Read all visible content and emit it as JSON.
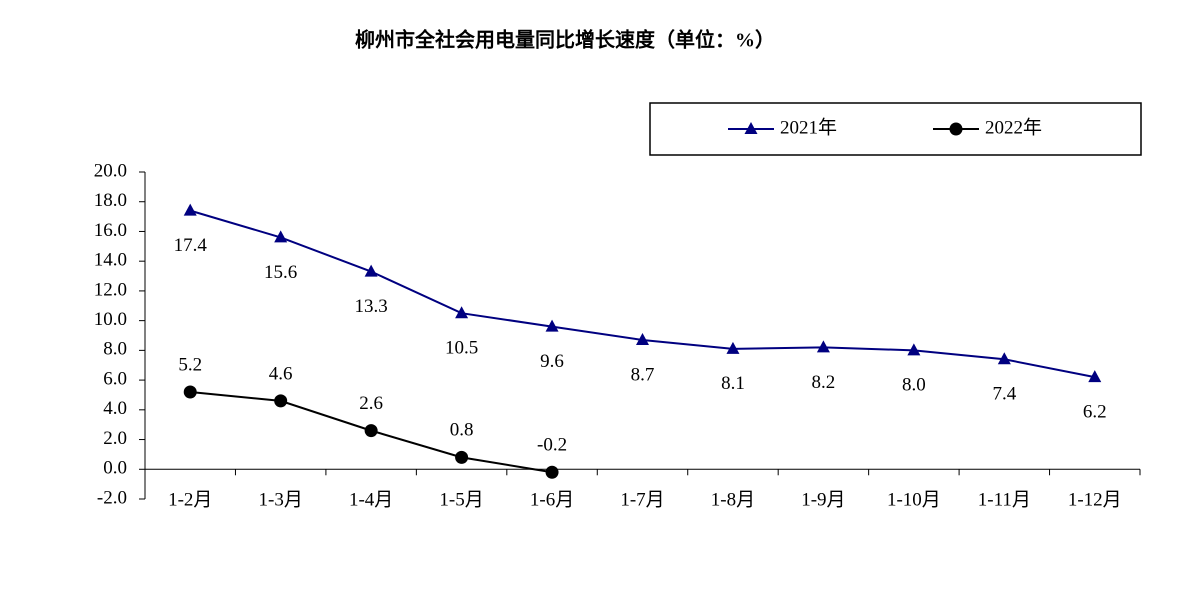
{
  "chart_data": {
    "type": "line",
    "title": "柳州市全社会用电量同比增长速度（单位：%）",
    "categories": [
      "1-2月",
      "1-3月",
      "1-4月",
      "1-5月",
      "1-6月",
      "1-7月",
      "1-8月",
      "1-9月",
      "1-10月",
      "1-11月",
      "1-12月"
    ],
    "series": [
      {
        "name": "2021年",
        "color": "#000080",
        "marker": "triangle",
        "values": [
          17.4,
          15.6,
          13.3,
          10.5,
          9.6,
          8.7,
          8.1,
          8.2,
          8.0,
          7.4,
          6.2
        ],
        "value_labels": [
          "17.4",
          "15.6",
          "13.3",
          "10.5",
          "9.6",
          "8.7",
          "8.1",
          "8.2",
          "8.0",
          "7.4",
          "6.2"
        ]
      },
      {
        "name": "2022年",
        "color": "#000000",
        "marker": "circle",
        "values": [
          5.2,
          4.6,
          2.6,
          0.8,
          -0.2,
          null,
          null,
          null,
          null,
          null,
          null
        ],
        "value_labels": [
          "5.2",
          "4.6",
          "2.6",
          "0.8",
          "-0.2",
          null,
          null,
          null,
          null,
          null,
          null
        ]
      }
    ],
    "ylim": [
      -2,
      20
    ],
    "yticks": [
      {
        "value": -2,
        "label": "-2.0"
      },
      {
        "value": 0,
        "label": "0.0"
      },
      {
        "value": 2,
        "label": "2.0"
      },
      {
        "value": 4,
        "label": "4.0"
      },
      {
        "value": 6,
        "label": "6.0"
      },
      {
        "value": 8,
        "label": "8.0"
      },
      {
        "value": 10,
        "label": "10.0"
      },
      {
        "value": 12,
        "label": "12.0"
      },
      {
        "value": 14,
        "label": "14.0"
      },
      {
        "value": 16,
        "label": "16.0"
      },
      {
        "value": 18,
        "label": "18.0"
      },
      {
        "value": 20,
        "label": "20.0"
      }
    ],
    "legend": "top-right"
  }
}
